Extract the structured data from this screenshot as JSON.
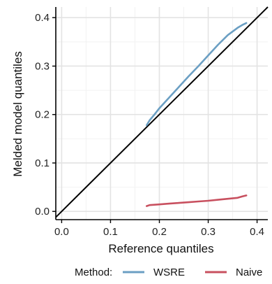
{
  "chart_data": {
    "type": "line",
    "title": "",
    "xlabel": "Reference quantiles",
    "ylabel": "Melded model quantiles",
    "xlim": [
      -0.012,
      0.422
    ],
    "ylim": [
      -0.017,
      0.422
    ],
    "x_ticks": [
      0.0,
      0.1,
      0.2,
      0.3,
      0.4
    ],
    "x_tick_labels": [
      "0.0",
      "0.1",
      "0.2",
      "0.3",
      "0.4"
    ],
    "y_ticks": [
      0.0,
      0.1,
      0.2,
      0.3,
      0.4
    ],
    "y_tick_labels": [
      "0.0",
      "0.1",
      "0.2",
      "0.3",
      "0.4"
    ],
    "grid": true,
    "reference_line": {
      "x": [
        -0.012,
        0.422
      ],
      "y": [
        -0.012,
        0.422
      ],
      "color": "#000000"
    },
    "legend": {
      "title": "Method:",
      "position": "bottom"
    },
    "series": [
      {
        "name": "WSRE",
        "color": "#6b9fc3",
        "x": [
          0.174,
          0.18,
          0.19,
          0.2,
          0.22,
          0.24,
          0.26,
          0.28,
          0.3,
          0.32,
          0.34,
          0.36,
          0.37,
          0.378
        ],
        "y": [
          0.178,
          0.188,
          0.2,
          0.213,
          0.235,
          0.257,
          0.279,
          0.3,
          0.322,
          0.344,
          0.364,
          0.379,
          0.385,
          0.389
        ]
      },
      {
        "name": "Naive",
        "color": "#c8505f",
        "x": [
          0.174,
          0.18,
          0.2,
          0.22,
          0.24,
          0.26,
          0.28,
          0.3,
          0.32,
          0.34,
          0.36,
          0.37,
          0.378
        ],
        "y": [
          0.011,
          0.013,
          0.0145,
          0.016,
          0.0175,
          0.019,
          0.0205,
          0.022,
          0.024,
          0.026,
          0.028,
          0.031,
          0.033
        ]
      }
    ]
  }
}
